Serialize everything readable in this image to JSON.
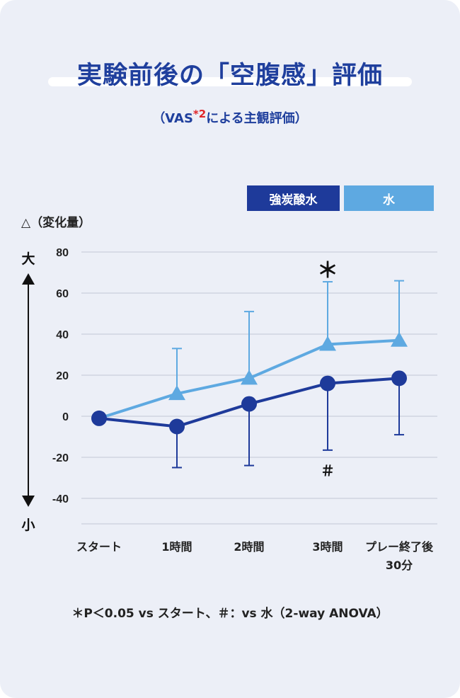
{
  "title": "実験前後の「空腹感」評価",
  "subtitle": {
    "prefix": "（VAS",
    "note_mark": "*2",
    "suffix": "による主観評価）"
  },
  "footnote": "＊P＜0.05 vs スタート、＃：vs 水（2-way ANOVA）",
  "colors": {
    "dark": "#1e3a9a",
    "light": "#5ea9e1",
    "background": "#eceff7",
    "title": "#1f3f9d"
  },
  "chart_data": {
    "type": "line",
    "title": "実験前後の「空腹感」評価",
    "ylabel": "△（変化量）",
    "y_axis_arrow": {
      "top": "大",
      "bottom": "小"
    },
    "categories": [
      "スタート",
      "1時間",
      "2時間",
      "3時間",
      "プレー終了後\n30分"
    ],
    "ylim": [
      -40,
      80
    ],
    "yticks": [
      80,
      60,
      40,
      20,
      0,
      -20,
      -40
    ],
    "grid": true,
    "legend_position": "top-right",
    "series": [
      {
        "name": "強炭酸水",
        "marker": "circle",
        "values": [
          -1,
          -5,
          6,
          16,
          18.5
        ],
        "error_lower": [
          null,
          -25,
          -24,
          -16.5,
          -9
        ]
      },
      {
        "name": "水",
        "marker": "triangle",
        "values": [
          -1,
          11,
          18.5,
          35,
          37
        ],
        "error_upper": [
          null,
          33,
          51,
          65.5,
          66
        ]
      }
    ],
    "annotations": [
      {
        "text": "＊",
        "category": "3時間",
        "position": "above"
      },
      {
        "text": "＃",
        "category": "3時間",
        "position": "below"
      }
    ]
  }
}
